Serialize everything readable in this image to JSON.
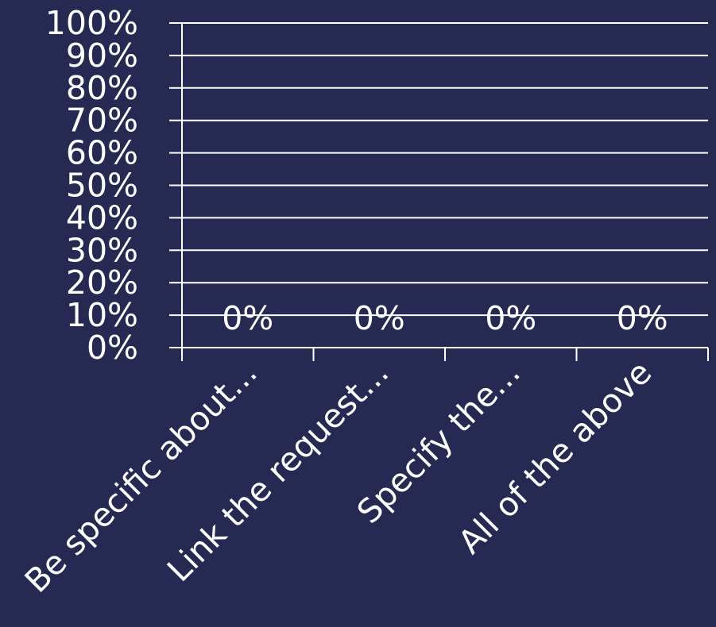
{
  "chart_data": {
    "type": "bar",
    "categories": [
      "Be specific about...",
      "Link the request...",
      "Specify the...",
      "All of the above"
    ],
    "values": [
      0,
      0,
      0,
      0
    ],
    "data_labels": [
      "0%",
      "0%",
      "0%",
      "0%"
    ],
    "yticks": [
      "0%",
      "10%",
      "20%",
      "30%",
      "40%",
      "50%",
      "60%",
      "70%",
      "80%",
      "90%",
      "100%"
    ],
    "ylim": [
      0,
      100
    ],
    "grid": true,
    "colors": {
      "background": "#262a53",
      "foreground": "#ffffff"
    }
  }
}
